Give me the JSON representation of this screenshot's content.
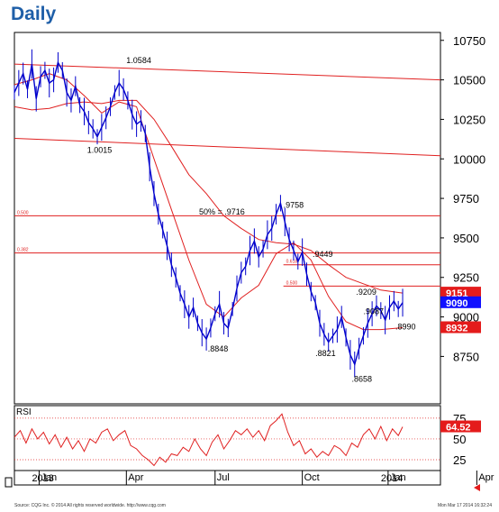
{
  "page": {
    "title": "Daily",
    "source_note": "Source: CQG Inc. © 2014 All rights reserved worldwide. http://www.cqg.com",
    "timestamp": "Mon Mar 17 2014 16:32:24"
  },
  "colors": {
    "title": "#1f5fa8",
    "price": "#0000cc",
    "lines": "#e02020",
    "tag_red": "#e41b1b",
    "tag_blue": "#1010ff"
  },
  "chart_data": {
    "type": "line",
    "price_panel": {
      "ylim": [
        8450,
        10800
      ],
      "y_ticks": [
        "10750",
        "10500",
        "10250",
        "10000",
        "9750",
        "9500",
        "9250",
        "9000",
        "8750"
      ],
      "y_tick_values": [
        10750,
        10500,
        10250,
        10000,
        9750,
        9500,
        9250,
        9000,
        8750
      ],
      "price_series": [
        [
          0,
          10420
        ],
        [
          3,
          10480
        ],
        [
          6,
          10540
        ],
        [
          9,
          10440
        ],
        [
          12,
          10600
        ],
        [
          15,
          10380
        ],
        [
          18,
          10520
        ],
        [
          21,
          10560
        ],
        [
          24,
          10480
        ],
        [
          27,
          10500
        ],
        [
          30,
          10610
        ],
        [
          33,
          10560
        ],
        [
          36,
          10420
        ],
        [
          39,
          10370
        ],
        [
          42,
          10460
        ],
        [
          45,
          10340
        ],
        [
          48,
          10300
        ],
        [
          51,
          10230
        ],
        [
          54,
          10190
        ],
        [
          57,
          10140
        ],
        [
          60,
          10200
        ],
        [
          63,
          10260
        ],
        [
          66,
          10330
        ],
        [
          69,
          10420
        ],
        [
          72,
          10480
        ],
        [
          75,
          10440
        ],
        [
          78,
          10370
        ],
        [
          81,
          10280
        ],
        [
          84,
          10220
        ],
        [
          87,
          10240
        ],
        [
          90,
          10160
        ],
        [
          93,
          9950
        ],
        [
          96,
          9780
        ],
        [
          99,
          9650
        ],
        [
          102,
          9550
        ],
        [
          105,
          9450
        ],
        [
          108,
          9330
        ],
        [
          111,
          9250
        ],
        [
          114,
          9150
        ],
        [
          117,
          9080
        ],
        [
          120,
          9000
        ],
        [
          123,
          9060
        ],
        [
          126,
          8960
        ],
        [
          129,
          8900
        ],
        [
          132,
          8860
        ],
        [
          135,
          8930
        ],
        [
          138,
          9020
        ],
        [
          141,
          9080
        ],
        [
          144,
          8960
        ],
        [
          147,
          8930
        ],
        [
          150,
          9050
        ],
        [
          153,
          9180
        ],
        [
          156,
          9280
        ],
        [
          159,
          9320
        ],
        [
          162,
          9420
        ],
        [
          165,
          9480
        ],
        [
          168,
          9380
        ],
        [
          171,
          9430
        ],
        [
          174,
          9520
        ],
        [
          177,
          9560
        ],
        [
          180,
          9650
        ],
        [
          183,
          9720
        ],
        [
          186,
          9600
        ],
        [
          189,
          9490
        ],
        [
          192,
          9420
        ],
        [
          195,
          9350
        ],
        [
          198,
          9410
        ],
        [
          201,
          9270
        ],
        [
          204,
          9160
        ],
        [
          207,
          9090
        ],
        [
          210,
          8960
        ],
        [
          213,
          8890
        ],
        [
          216,
          8840
        ],
        [
          219,
          8880
        ],
        [
          222,
          8920
        ],
        [
          225,
          9000
        ],
        [
          228,
          8870
        ],
        [
          231,
          8760
        ],
        [
          234,
          8700
        ],
        [
          237,
          8800
        ],
        [
          240,
          8880
        ],
        [
          243,
          8960
        ],
        [
          246,
          9020
        ],
        [
          249,
          9070
        ],
        [
          252,
          9040
        ],
        [
          255,
          8980
        ],
        [
          258,
          9060
        ],
        [
          261,
          9100
        ],
        [
          264,
          9050
        ],
        [
          267,
          9090
        ]
      ],
      "ma_fast": [
        [
          0,
          10470
        ],
        [
          12,
          10500
        ],
        [
          24,
          10540
        ],
        [
          36,
          10500
        ],
        [
          48,
          10400
        ],
        [
          60,
          10290
        ],
        [
          72,
          10360
        ],
        [
          84,
          10330
        ],
        [
          96,
          10000
        ],
        [
          108,
          9680
        ],
        [
          120,
          9360
        ],
        [
          132,
          9080
        ],
        [
          144,
          9000
        ],
        [
          156,
          9120
        ],
        [
          168,
          9200
        ],
        [
          180,
          9400
        ],
        [
          192,
          9470
        ],
        [
          204,
          9360
        ],
        [
          216,
          9130
        ],
        [
          228,
          8970
        ],
        [
          240,
          8920
        ],
        [
          252,
          8920
        ],
        [
          267,
          8932
        ]
      ],
      "ma_slow": [
        [
          0,
          10330
        ],
        [
          12,
          10310
        ],
        [
          24,
          10320
        ],
        [
          36,
          10350
        ],
        [
          48,
          10360
        ],
        [
          60,
          10350
        ],
        [
          72,
          10370
        ],
        [
          84,
          10370
        ],
        [
          96,
          10250
        ],
        [
          108,
          10080
        ],
        [
          120,
          9900
        ],
        [
          132,
          9780
        ],
        [
          144,
          9640
        ],
        [
          156,
          9560
        ],
        [
          168,
          9490
        ],
        [
          180,
          9470
        ],
        [
          192,
          9460
        ],
        [
          204,
          9420
        ],
        [
          216,
          9330
        ],
        [
          228,
          9250
        ],
        [
          240,
          9210
        ],
        [
          252,
          9170
        ],
        [
          267,
          9151
        ]
      ],
      "trendlines": [
        {
          "points": [
            [
              0,
              10600
            ],
            [
              293,
              10500
            ]
          ]
        },
        {
          "points": [
            [
              0,
              10130
            ],
            [
              293,
              10020
            ]
          ]
        }
      ],
      "fib_levels": [
        {
          "label": "0.500",
          "value": 9640,
          "x_start": 0
        },
        {
          "label": "0.382",
          "value": 9405,
          "x_start": 0
        },
        {
          "label": "0.618",
          "value": 9330,
          "x_start": 185
        },
        {
          "label": "0.500",
          "value": 9195,
          "x_start": 185
        }
      ],
      "annotations": [
        {
          "text": "1.0584",
          "x": 77,
          "y": 10584
        },
        {
          "text": "1.0015",
          "x": 50,
          "y": 10015
        },
        {
          "text": "50% = .9716",
          "x": 127,
          "y": 9716
        },
        {
          "text": ".9758",
          "x": 185,
          "y": 9758
        },
        {
          "text": ".9449",
          "x": 205,
          "y": 9449
        },
        {
          "text": ".9209",
          "x": 235,
          "y": 9209
        },
        {
          "text": ".9087",
          "x": 240,
          "y": 9087
        },
        {
          "text": ".8848",
          "x": 133,
          "y": 8848
        },
        {
          "text": ".8821",
          "x": 207,
          "y": 8821
        },
        {
          "text": ".8658",
          "x": 232,
          "y": 8658
        },
        {
          "text": ".8990",
          "x": 262,
          "y": 8990
        }
      ],
      "last_value_tags": [
        {
          "text": "9151",
          "value": 9151,
          "color": "#e41b1b"
        },
        {
          "text": "9090",
          "value": 9090,
          "color": "#1010ff"
        },
        {
          "text": "8932",
          "value": 8932,
          "color": "#e41b1b"
        }
      ]
    },
    "rsi_panel": {
      "label": "RSI",
      "ylim": [
        12,
        90
      ],
      "y_ticks": [
        "75",
        "50",
        "25"
      ],
      "y_tick_values": [
        75,
        50,
        25
      ],
      "guide_levels": [
        75,
        50,
        25
      ],
      "last_value_tag": {
        "text": "64.52",
        "value": 64.52,
        "color": "#e41b1b"
      },
      "series": [
        [
          0,
          52
        ],
        [
          4,
          60
        ],
        [
          8,
          45
        ],
        [
          12,
          62
        ],
        [
          16,
          50
        ],
        [
          20,
          58
        ],
        [
          24,
          44
        ],
        [
          28,
          55
        ],
        [
          32,
          40
        ],
        [
          36,
          52
        ],
        [
          40,
          38
        ],
        [
          44,
          48
        ],
        [
          48,
          35
        ],
        [
          52,
          50
        ],
        [
          56,
          45
        ],
        [
          60,
          58
        ],
        [
          64,
          62
        ],
        [
          68,
          48
        ],
        [
          72,
          55
        ],
        [
          76,
          60
        ],
        [
          80,
          42
        ],
        [
          84,
          38
        ],
        [
          88,
          30
        ],
        [
          92,
          25
        ],
        [
          96,
          18
        ],
        [
          100,
          28
        ],
        [
          104,
          22
        ],
        [
          108,
          32
        ],
        [
          112,
          30
        ],
        [
          116,
          40
        ],
        [
          120,
          35
        ],
        [
          124,
          50
        ],
        [
          128,
          38
        ],
        [
          132,
          30
        ],
        [
          136,
          46
        ],
        [
          140,
          55
        ],
        [
          144,
          38
        ],
        [
          148,
          48
        ],
        [
          152,
          60
        ],
        [
          156,
          55
        ],
        [
          160,
          62
        ],
        [
          164,
          52
        ],
        [
          168,
          60
        ],
        [
          172,
          48
        ],
        [
          176,
          66
        ],
        [
          180,
          72
        ],
        [
          184,
          80
        ],
        [
          188,
          58
        ],
        [
          192,
          42
        ],
        [
          196,
          48
        ],
        [
          200,
          32
        ],
        [
          204,
          38
        ],
        [
          208,
          28
        ],
        [
          212,
          35
        ],
        [
          216,
          30
        ],
        [
          220,
          42
        ],
        [
          224,
          38
        ],
        [
          228,
          30
        ],
        [
          232,
          45
        ],
        [
          236,
          40
        ],
        [
          240,
          55
        ],
        [
          244,
          62
        ],
        [
          248,
          50
        ],
        [
          252,
          65
        ],
        [
          256,
          48
        ],
        [
          260,
          62
        ],
        [
          264,
          54
        ],
        [
          267,
          64.52
        ]
      ]
    },
    "x_axis": {
      "x_range": [
        0,
        293
      ],
      "ticks": [
        {
          "label": "Jan",
          "x": 17
        },
        {
          "label": "Apr",
          "x": 77
        },
        {
          "label": "Jul",
          "x": 138
        },
        {
          "label": "Oct",
          "x": 198
        },
        {
          "label": "Jan",
          "x": 257
        },
        {
          "label": "Apr",
          "x": 318
        }
      ],
      "year_labels": [
        {
          "text": "2013",
          "x": 17
        },
        {
          "text": "2014",
          "x": 257
        }
      ]
    }
  }
}
